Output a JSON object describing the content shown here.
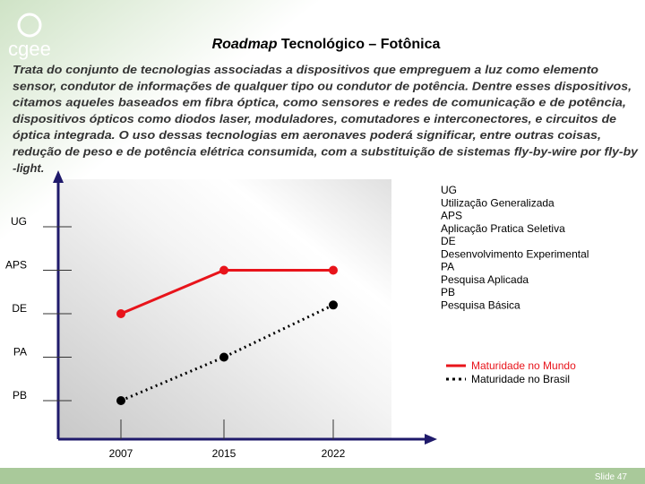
{
  "logo": "cgee",
  "slide_number": "Slide 47",
  "description": [
    "Trata do conjunto de tecnologias associadas a dispositivos que empreguem a luz como elemento",
    "sensor, condutor de informações de qualquer tipo ou condutor de potência. Dentre esses dispositivos,",
    "citamos aqueles baseados em fibra óptica, como sensores e redes de comunicação e de potência,",
    "dispositivos ópticos como diodos laser, moduladores, comutadores e interconectores, e circuitos de",
    "óptica integrada. O uso dessas tecnologias em aeronaves poderá significar, entre outras coisas,",
    "redução de peso e de potência elétrica consumida, com a substituição de sistemas fly-by-wire por fly-by",
    "-light."
  ],
  "chart_data": {
    "type": "line",
    "title": [
      "Roadmap",
      "Tecnológico – Fotônica"
    ],
    "categories": [
      "2007",
      "2015",
      "2022"
    ],
    "series": [
      {
        "name": "Maturidade no Mundo",
        "color": "#e8141b",
        "style": "solid",
        "values": [
          3,
          4,
          4
        ]
      },
      {
        "name": "Maturidade no Brasil",
        "color": "#000000",
        "style": "dotted",
        "values": [
          1,
          2,
          3.2
        ]
      }
    ],
    "ylim": [
      0,
      6
    ],
    "yticks": [
      {
        "value": 1,
        "label": "PB"
      },
      {
        "value": 2,
        "label": "PA"
      },
      {
        "value": 3,
        "label": "DE"
      },
      {
        "value": 4,
        "label": "APS"
      },
      {
        "value": 5,
        "label": "UG"
      }
    ],
    "key": [
      {
        "code": "UG",
        "meaning": "Utilização Generalizada"
      },
      {
        "code": "APS",
        "meaning": "Aplicação Pratica Seletiva"
      },
      {
        "code": "DE",
        "meaning": "Desenvolvimento Experimental"
      },
      {
        "code": "PA",
        "meaning": "Pesquisa Aplicada"
      },
      {
        "code": "PB",
        "meaning": "Pesquisa Básica"
      }
    ]
  }
}
